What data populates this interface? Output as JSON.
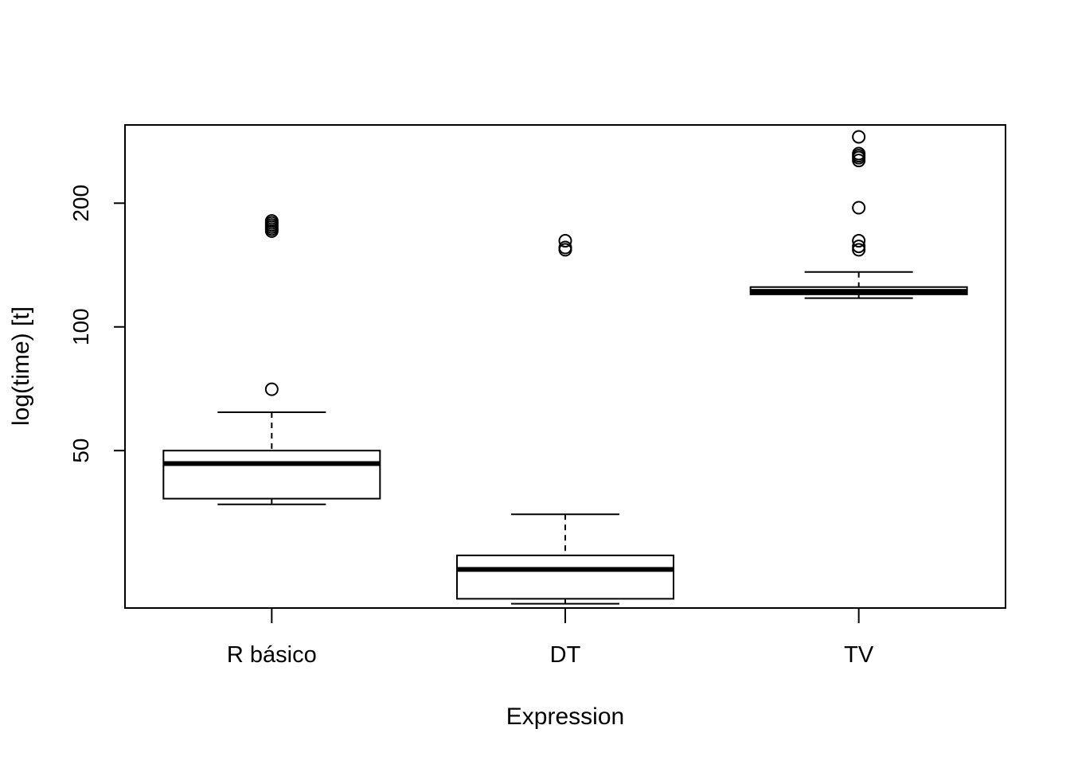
{
  "chart_data": {
    "type": "boxplot",
    "title": "",
    "xlabel": "Expression",
    "ylabel": "log(time) [t]",
    "y_scale": "log",
    "ylim": [
      20.7,
      310
    ],
    "y_ticks": [
      50,
      100,
      200
    ],
    "y_tick_labels": [
      "50",
      "100",
      "200"
    ],
    "categories": [
      "R básico",
      "DT",
      "TV"
    ],
    "grid": false,
    "legend": "none",
    "boxes": [
      {
        "name": "R básico",
        "whisker_low": 37,
        "q1": 38.2,
        "median": 46.5,
        "q3": 50,
        "whisker_high": 62,
        "outliers": [
          70.5,
          171,
          173,
          175,
          177,
          179,
          181
        ]
      },
      {
        "name": "DT",
        "whisker_low": 21.2,
        "q1": 21.8,
        "median": 25.7,
        "q3": 27.8,
        "whisker_high": 35,
        "outliers": [
          154,
          156,
          162
        ]
      },
      {
        "name": "TV",
        "whisker_low": 117.5,
        "q1": 120,
        "median": 122,
        "q3": 125,
        "whisker_high": 136,
        "outliers": [
          154,
          157,
          162,
          195,
          254,
          258,
          261,
          264,
          290
        ]
      }
    ]
  }
}
